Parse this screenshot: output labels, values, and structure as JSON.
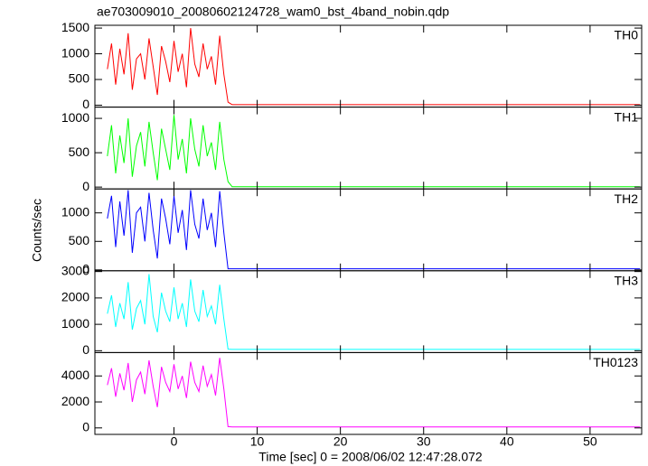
{
  "title": "ae703009010_20080602124728_wam0_bst_4band_nobin.qdp",
  "xlabel": "Time [sec] 0 = 2008/06/02 12:47:28.072",
  "ylabel": "Counts/sec",
  "xlim": [
    -9.5,
    56.2
  ],
  "xticks": [
    0,
    10,
    20,
    30,
    40,
    50
  ],
  "chart_data": [
    {
      "type": "line",
      "x": [
        -8,
        -7.5,
        -7,
        -6.5,
        -6,
        -5.5,
        -5,
        -4.5,
        -4,
        -3.5,
        -3,
        -2.5,
        -2,
        -1.5,
        -1,
        -0.5,
        0,
        0.5,
        1,
        1.5,
        2,
        2.5,
        3,
        3.5,
        4,
        4.5,
        5,
        5.5,
        6,
        6.5,
        7,
        8,
        56
      ],
      "series": [
        {
          "name": "TH0",
          "color": "#ff0000",
          "values": [
            700,
            1200,
            400,
            1100,
            600,
            1400,
            300,
            900,
            1000,
            500,
            1300,
            750,
            200,
            1150,
            850,
            450,
            1250,
            650,
            1000,
            350,
            1500,
            800,
            550,
            1200,
            700,
            950,
            400,
            1350,
            600,
            60,
            10,
            10,
            10
          ]
        }
      ],
      "ylim": [
        -37,
        1554
      ],
      "yticks": [
        0,
        500,
        1000,
        1500
      ]
    },
    {
      "type": "line",
      "x": [
        -8,
        -7.5,
        -7,
        -6.5,
        -6,
        -5.5,
        -5,
        -4.5,
        -4,
        -3.5,
        -3,
        -2.5,
        -2,
        -1.5,
        -1,
        -0.5,
        0,
        0.5,
        1,
        1.5,
        2,
        2.5,
        3,
        3.5,
        4,
        4.5,
        5,
        5.5,
        6,
        6.5,
        7,
        8,
        56
      ],
      "series": [
        {
          "name": "TH1",
          "color": "#00ff00",
          "values": [
            450,
            900,
            200,
            750,
            350,
            1000,
            150,
            600,
            800,
            300,
            950,
            500,
            100,
            850,
            550,
            250,
            1050,
            400,
            700,
            200,
            1000,
            550,
            300,
            900,
            450,
            650,
            250,
            950,
            400,
            80,
            5,
            5,
            5
          ]
        }
      ],
      "ylim": [
        -27,
        1164
      ],
      "yticks": [
        0,
        500,
        1000
      ]
    },
    {
      "type": "line",
      "x": [
        -8,
        -7.5,
        -7,
        -6.5,
        -6,
        -5.5,
        -5,
        -4.5,
        -4,
        -3.5,
        -3,
        -2.5,
        -2,
        -1.5,
        -1,
        -0.5,
        0,
        0.5,
        1,
        1.5,
        2,
        2.5,
        3,
        3.5,
        4,
        4.5,
        5,
        5.5,
        6,
        6.5,
        7,
        8,
        56
      ],
      "series": [
        {
          "name": "TH2",
          "color": "#0000ff",
          "values": [
            900,
            1300,
            400,
            1200,
            600,
            1400,
            300,
            1000,
            1100,
            500,
            1350,
            700,
            200,
            1250,
            900,
            450,
            1300,
            650,
            1050,
            350,
            1400,
            800,
            550,
            1250,
            700,
            1000,
            400,
            1380,
            650,
            20,
            20,
            20,
            20
          ]
        }
      ],
      "ylim": [
        -15,
        1420
      ],
      "yticks": [
        0,
        500,
        1000
      ]
    },
    {
      "type": "line",
      "x": [
        -8,
        -7.5,
        -7,
        -6.5,
        -6,
        -5.5,
        -5,
        -4.5,
        -4,
        -3.5,
        -3,
        -2.5,
        -2,
        -1.5,
        -1,
        -0.5,
        0,
        0.5,
        1,
        1.5,
        2,
        2.5,
        3,
        3.5,
        4,
        4.5,
        5,
        5.5,
        6,
        6.5,
        7,
        8,
        56
      ],
      "series": [
        {
          "name": "TH3",
          "color": "#00ffff",
          "values": [
            1400,
            2100,
            900,
            1800,
            1200,
            2600,
            800,
            1600,
            1900,
            1000,
            2900,
            1300,
            700,
            2200,
            1500,
            1100,
            2400,
            1200,
            1800,
            900,
            2700,
            1500,
            1100,
            2300,
            1300,
            1700,
            1000,
            2500,
            1200,
            60,
            50,
            50,
            50
          ]
        }
      ],
      "ylim": [
        -70,
        3030
      ],
      "yticks": [
        0,
        1000,
        2000,
        3000
      ]
    },
    {
      "type": "line",
      "x": [
        -8,
        -7.5,
        -7,
        -6.5,
        -6,
        -5.5,
        -5,
        -4.5,
        -4,
        -3.5,
        -3,
        -2.5,
        -2,
        -1.5,
        -1,
        -0.5,
        0,
        0.5,
        1,
        1.5,
        2,
        2.5,
        3,
        3.5,
        4,
        4.5,
        5,
        5.5,
        6,
        6.5,
        7,
        8,
        56
      ],
      "series": [
        {
          "name": "TH0123",
          "color": "#ff00ff",
          "values": [
            3300,
            4600,
            2400,
            4200,
            2900,
            5000,
            2000,
            3700,
            4300,
            2600,
            5200,
            3200,
            1600,
            4700,
            3500,
            2800,
            4900,
            3000,
            4000,
            2300,
            5100,
            3500,
            2800,
            4800,
            3200,
            4100,
            2500,
            5400,
            3000,
            100,
            80,
            80,
            80
          ]
        }
      ],
      "ylim": [
        -500,
        5800
      ],
      "yticks": [
        0,
        2000,
        4000
      ]
    }
  ]
}
